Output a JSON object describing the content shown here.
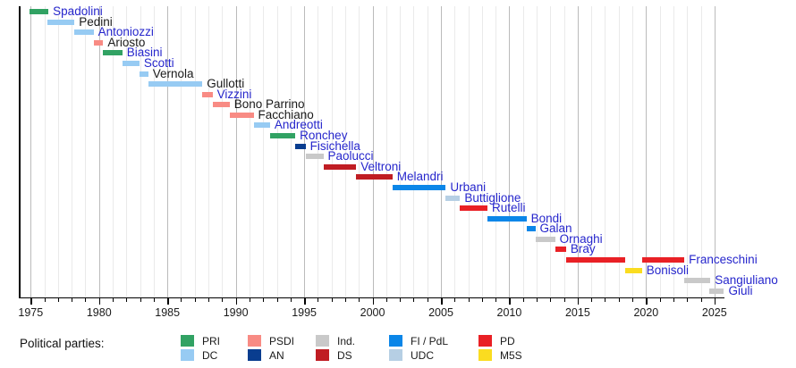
{
  "legend": {
    "title": "Political parties:",
    "columns": [
      [
        {
          "party": "PRI",
          "label": "PRI"
        },
        {
          "party": "DC",
          "label": "DC"
        }
      ],
      [
        {
          "party": "PSDI",
          "label": "PSDI"
        },
        {
          "party": "AN",
          "label": "AN"
        }
      ],
      [
        {
          "party": "IND",
          "label": "Ind."
        },
        {
          "party": "DS",
          "label": "DS"
        }
      ],
      [
        {
          "party": "FI",
          "label": "FI / PdL"
        },
        {
          "party": "UDC",
          "label": "UDC"
        }
      ],
      [
        {
          "party": "PD",
          "label": "PD"
        },
        {
          "party": "M5S",
          "label": "M5S"
        }
      ]
    ]
  },
  "party_colors": {
    "PRI": "#31A263",
    "DC": "#97CBF3",
    "PSDI": "#F88B84",
    "AN": "#093D8F",
    "IND": "#C9C9C9",
    "DS": "#C01D23",
    "FI": "#0B86E8",
    "UDC": "#B6CFE4",
    "PD": "#E92025",
    "M5S": "#FADC20"
  },
  "text_colors": {
    "link": "#2626CC",
    "plain": "#1A1A1A"
  },
  "chart_data": {
    "type": "timeline",
    "unit": "year",
    "axis": {
      "start": 1975,
      "end": 2025,
      "major_step": 5,
      "minor_step": 1,
      "major_tick_labels": [
        "1975",
        "1980",
        "1985",
        "1990",
        "1995",
        "2000",
        "2005",
        "2010",
        "2015",
        "2020",
        "2025"
      ]
    },
    "grid": "yearly",
    "legend_position": "bottom",
    "ministers": [
      {
        "name": "Spadolini",
        "party": "PRI",
        "link": true,
        "segments": [
          [
            1974.9,
            1976.3
          ]
        ]
      },
      {
        "name": "Pedini",
        "party": "DC",
        "link": false,
        "segments": [
          [
            1976.2,
            1978.2
          ]
        ]
      },
      {
        "name": "Antoniozzi",
        "party": "DC",
        "link": true,
        "segments": [
          [
            1978.2,
            1979.6
          ]
        ]
      },
      {
        "name": "Ariosto",
        "party": "PSDI",
        "link": false,
        "segments": [
          [
            1979.6,
            1980.3
          ]
        ]
      },
      {
        "name": "Biasini",
        "party": "PRI",
        "link": true,
        "segments": [
          [
            1980.3,
            1981.7
          ]
        ]
      },
      {
        "name": "Scotti",
        "party": "DC",
        "link": true,
        "segments": [
          [
            1981.7,
            1982.95
          ]
        ]
      },
      {
        "name": "Vernola",
        "party": "DC",
        "link": false,
        "segments": [
          [
            1982.95,
            1983.6
          ]
        ]
      },
      {
        "name": "Gullotti",
        "party": "DC",
        "link": false,
        "segments": [
          [
            1983.6,
            1987.55
          ]
        ]
      },
      {
        "name": "Vizzini",
        "party": "PSDI",
        "link": true,
        "segments": [
          [
            1987.55,
            1988.3
          ]
        ]
      },
      {
        "name": "Bono Parrino",
        "party": "PSDI",
        "link": false,
        "segments": [
          [
            1988.3,
            1989.55
          ]
        ]
      },
      {
        "name": "Facchiano",
        "party": "PSDI",
        "link": false,
        "segments": [
          [
            1989.55,
            1991.3
          ]
        ]
      },
      {
        "name": "Andreotti",
        "party": "DC",
        "link": true,
        "segments": [
          [
            1991.3,
            1992.5
          ]
        ]
      },
      {
        "name": "Ronchey",
        "party": "PRI",
        "link": true,
        "segments": [
          [
            1992.5,
            1994.35
          ]
        ]
      },
      {
        "name": "Fisichella",
        "party": "AN",
        "link": true,
        "segments": [
          [
            1994.35,
            1995.1
          ]
        ]
      },
      {
        "name": "Paolucci",
        "party": "IND",
        "link": true,
        "segments": [
          [
            1995.1,
            1996.4
          ]
        ]
      },
      {
        "name": "Veltroni",
        "party": "DS",
        "link": true,
        "segments": [
          [
            1996.4,
            1998.8
          ]
        ]
      },
      {
        "name": "Melandri",
        "party": "DS",
        "link": true,
        "segments": [
          [
            1998.8,
            2001.45
          ]
        ]
      },
      {
        "name": "Urbani",
        "party": "FI",
        "link": true,
        "segments": [
          [
            2001.45,
            2005.35
          ]
        ]
      },
      {
        "name": "Buttiglione",
        "party": "UDC",
        "link": true,
        "segments": [
          [
            2005.35,
            2006.4
          ]
        ]
      },
      {
        "name": "Rutelli",
        "party": "PD",
        "link": true,
        "segments": [
          [
            2006.4,
            2008.4
          ]
        ]
      },
      {
        "name": "Bondi",
        "party": "FI",
        "link": true,
        "segments": [
          [
            2008.4,
            2011.25
          ]
        ]
      },
      {
        "name": "Galan",
        "party": "FI",
        "link": true,
        "segments": [
          [
            2011.25,
            2011.9
          ]
        ]
      },
      {
        "name": "Ornaghi",
        "party": "IND",
        "link": true,
        "segments": [
          [
            2011.9,
            2013.35
          ]
        ]
      },
      {
        "name": "Bray",
        "party": "PD",
        "link": true,
        "segments": [
          [
            2013.35,
            2014.15
          ]
        ]
      },
      {
        "name": "Franceschini",
        "party": "PD",
        "link": true,
        "segments": [
          [
            2014.15,
            2018.45
          ],
          [
            2019.7,
            2022.8
          ]
        ]
      },
      {
        "name": "Bonisoli",
        "party": "M5S",
        "link": true,
        "segments": [
          [
            2018.45,
            2019.7
          ]
        ]
      },
      {
        "name": "Sangiuliano",
        "party": "IND",
        "link": true,
        "segments": [
          [
            2022.8,
            2024.7
          ]
        ]
      },
      {
        "name": "Giuli",
        "party": "IND",
        "link": true,
        "segments": [
          [
            2024.65,
            2025.7
          ]
        ]
      }
    ]
  }
}
